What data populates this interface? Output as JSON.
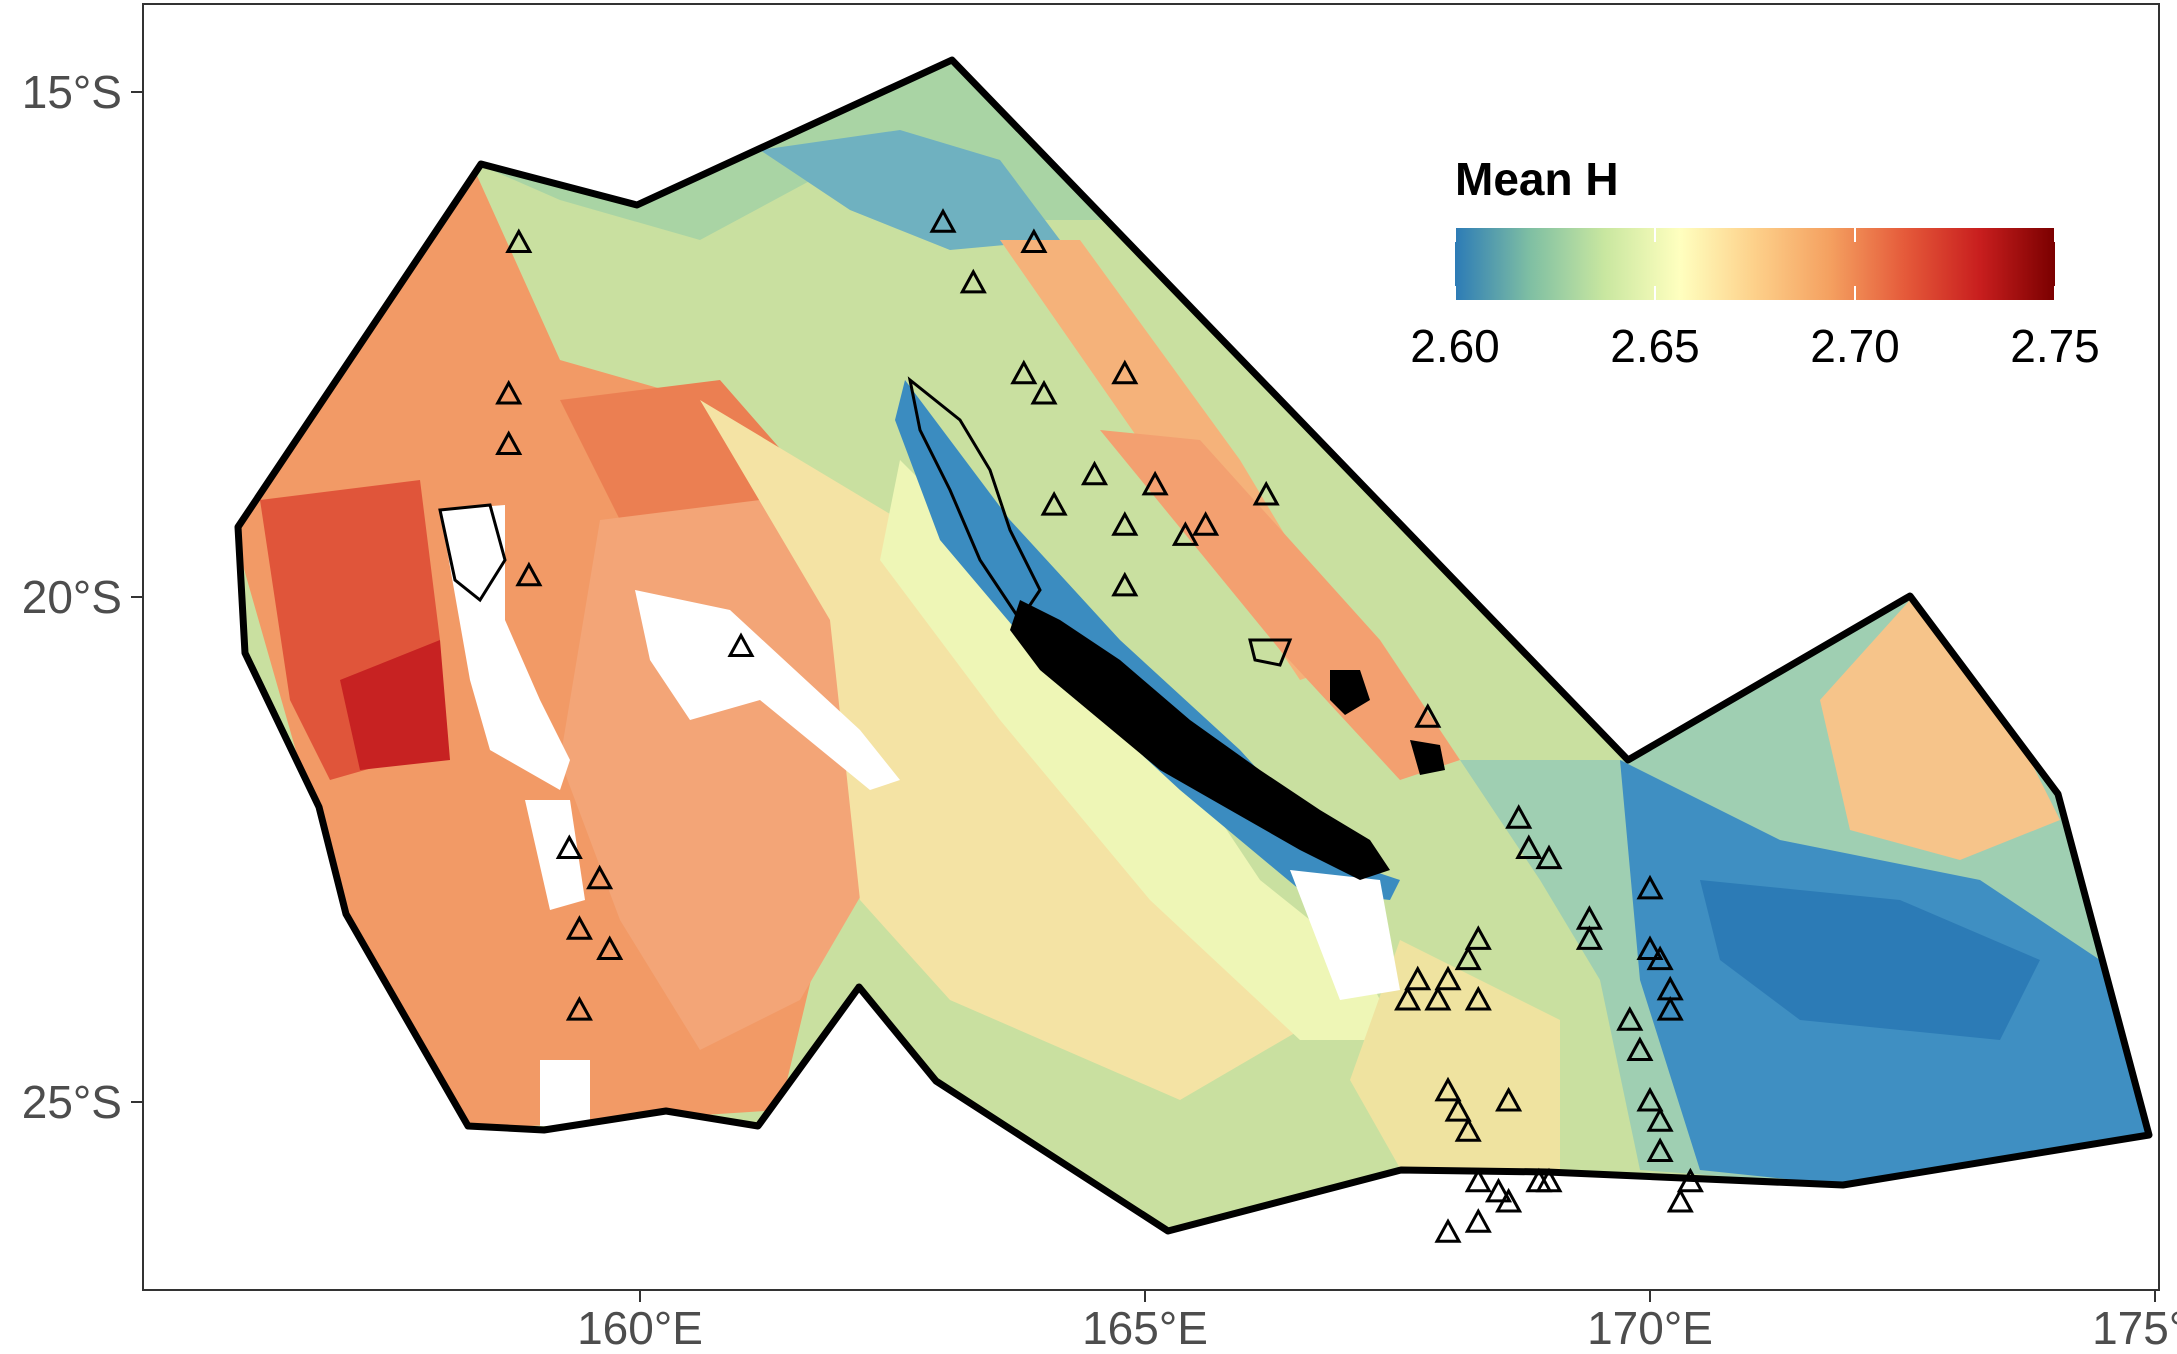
{
  "map": {
    "legend": {
      "title": "Mean H",
      "labels": [
        "2.60",
        "2.65",
        "2.70",
        "2.75"
      ],
      "colors": [
        "#2c7bb6",
        "#7fbfa3",
        "#c9e7a0",
        "#ffffbf",
        "#fdd08a",
        "#f4a060",
        "#e55a3a",
        "#c81e1e",
        "#7a0000"
      ]
    },
    "y_axis": {
      "ticks": [
        {
          "label": "15°S",
          "lat": -15
        },
        {
          "label": "20°S",
          "lat": -20
        },
        {
          "label": "25°S",
          "lat": -25
        }
      ]
    },
    "x_axis": {
      "ticks": [
        {
          "label": "160°E",
          "lon": 160
        },
        {
          "label": "165°E",
          "lon": 165
        },
        {
          "label": "170°E",
          "lon": 170
        },
        {
          "label": "175°E",
          "lon": 175
        }
      ]
    },
    "stations": [
      {
        "lon": 158.8,
        "lat": -16.5
      },
      {
        "lon": 158.7,
        "lat": -18.0
      },
      {
        "lon": 158.7,
        "lat": -18.5
      },
      {
        "lon": 158.9,
        "lat": -19.8
      },
      {
        "lon": 159.3,
        "lat": -22.5
      },
      {
        "lon": 159.6,
        "lat": -22.8
      },
      {
        "lon": 159.4,
        "lat": -23.3
      },
      {
        "lon": 159.7,
        "lat": -23.5
      },
      {
        "lon": 159.4,
        "lat": -24.1
      },
      {
        "lon": 161.0,
        "lat": -20.5
      },
      {
        "lon": 163.0,
        "lat": -16.3
      },
      {
        "lon": 163.3,
        "lat": -16.9
      },
      {
        "lon": 163.9,
        "lat": -16.5
      },
      {
        "lon": 163.8,
        "lat": -17.8
      },
      {
        "lon": 164.0,
        "lat": -18.0
      },
      {
        "lon": 164.8,
        "lat": -17.8
      },
      {
        "lon": 164.1,
        "lat": -19.1
      },
      {
        "lon": 164.5,
        "lat": -18.8
      },
      {
        "lon": 165.1,
        "lat": -18.9
      },
      {
        "lon": 164.8,
        "lat": -19.3
      },
      {
        "lon": 165.4,
        "lat": -19.4
      },
      {
        "lon": 165.6,
        "lat": -19.3
      },
      {
        "lon": 164.8,
        "lat": -19.9
      },
      {
        "lon": 166.2,
        "lat": -19.0
      },
      {
        "lon": 167.8,
        "lat": -21.2
      },
      {
        "lon": 168.7,
        "lat": -22.2
      },
      {
        "lon": 168.8,
        "lat": -22.5
      },
      {
        "lon": 169.0,
        "lat": -22.6
      },
      {
        "lon": 168.3,
        "lat": -23.4
      },
      {
        "lon": 168.2,
        "lat": -23.6
      },
      {
        "lon": 168.0,
        "lat": -23.8
      },
      {
        "lon": 167.7,
        "lat": -23.8
      },
      {
        "lon": 167.6,
        "lat": -24.0
      },
      {
        "lon": 167.9,
        "lat": -24.0
      },
      {
        "lon": 168.3,
        "lat": -24.0
      },
      {
        "lon": 169.4,
        "lat": -23.2
      },
      {
        "lon": 169.4,
        "lat": -23.4
      },
      {
        "lon": 170.0,
        "lat": -22.9
      },
      {
        "lon": 170.0,
        "lat": -23.5
      },
      {
        "lon": 170.1,
        "lat": -23.6
      },
      {
        "lon": 170.2,
        "lat": -23.9
      },
      {
        "lon": 170.2,
        "lat": -24.1
      },
      {
        "lon": 169.8,
        "lat": -24.2
      },
      {
        "lon": 169.9,
        "lat": -24.5
      },
      {
        "lon": 168.0,
        "lat": -24.9
      },
      {
        "lon": 168.1,
        "lat": -25.1
      },
      {
        "lon": 168.2,
        "lat": -25.3
      },
      {
        "lon": 168.6,
        "lat": -25.0
      },
      {
        "lon": 168.3,
        "lat": -25.8
      },
      {
        "lon": 168.5,
        "lat": -25.9
      },
      {
        "lon": 168.6,
        "lat": -26.0
      },
      {
        "lon": 168.9,
        "lat": -25.8
      },
      {
        "lon": 169.0,
        "lat": -25.8
      },
      {
        "lon": 170.0,
        "lat": -25.0
      },
      {
        "lon": 170.1,
        "lat": -25.2
      },
      {
        "lon": 170.1,
        "lat": -25.5
      },
      {
        "lon": 170.4,
        "lat": -25.8
      },
      {
        "lon": 170.3,
        "lat": -26.0
      },
      {
        "lon": 168.3,
        "lat": -26.2
      },
      {
        "lon": 168.0,
        "lat": -26.3
      }
    ]
  }
}
